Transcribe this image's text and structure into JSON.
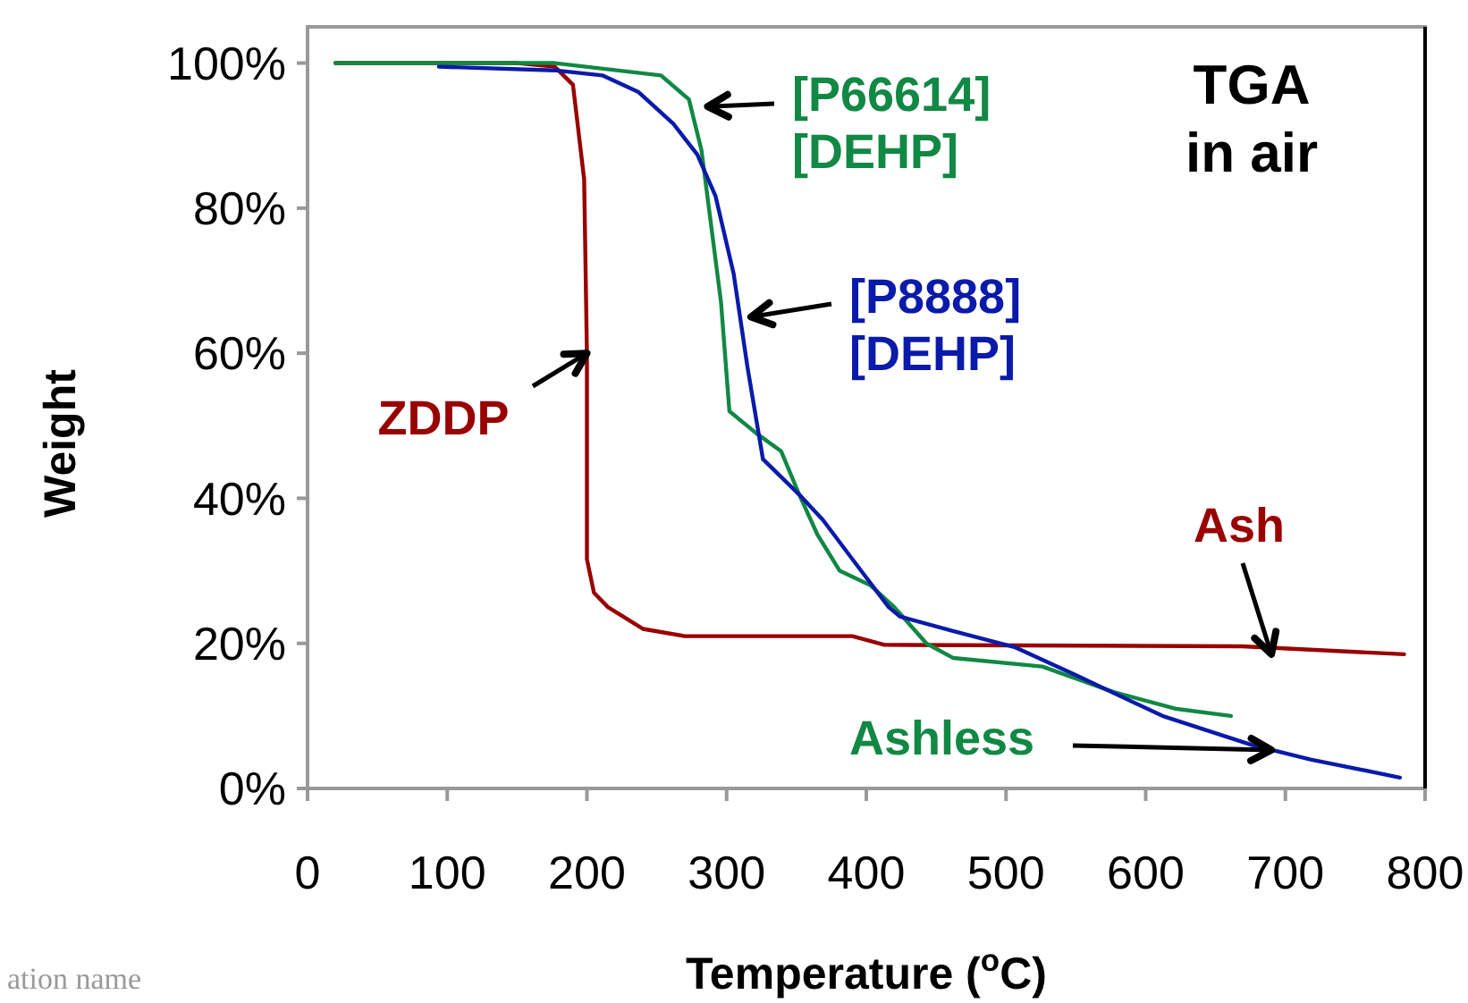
{
  "chart_data": {
    "type": "line",
    "title": "TGA in air",
    "xlabel": "Temperature ($^{o}$C)",
    "ylabel": "Weight",
    "xlim": [
      0,
      800
    ],
    "xticks": [
      0,
      100,
      200,
      300,
      400,
      500,
      600,
      700,
      800
    ],
    "ylim": [
      0,
      105
    ],
    "yticks": [
      {
        "value": 0,
        "label": "0%"
      },
      {
        "value": 20,
        "label": "20%"
      },
      {
        "value": 40,
        "label": "40%"
      },
      {
        "value": 60,
        "label": "60%"
      },
      {
        "value": 80,
        "label": "80%"
      },
      {
        "value": 100,
        "label": "100%"
      }
    ],
    "grid": false,
    "legend": false,
    "marker": "none",
    "line_style": "solid",
    "series": [
      {
        "name": "ZDDP",
        "color": "#990000",
        "x": [
          20,
          150,
          177,
          190,
          198,
          200,
          200,
          205,
          215,
          240,
          270,
          390,
          413,
          669,
          785
        ],
        "values": [
          100,
          100,
          99.5,
          97,
          84,
          60,
          31.6,
          27,
          25,
          22,
          21,
          21,
          19.8,
          19.6,
          18.5
        ]
      },
      {
        "name": "[P66614]\n[DEHP]",
        "color": "#118844",
        "x": [
          20,
          177,
          253,
          273,
          282,
          288,
          296,
          302,
          321,
          339,
          352,
          365,
          381,
          403,
          420,
          443,
          462,
          526,
          577,
          621,
          661
        ],
        "values": [
          100,
          100,
          98.3,
          95,
          88,
          79,
          67,
          52,
          49,
          46.5,
          40.5,
          35,
          30,
          28,
          25,
          20,
          18,
          16.8,
          13.3,
          11,
          10
        ]
      },
      {
        "name": "[P8888]\n[DEHP]",
        "color": "#0a1aaa",
        "x": [
          94,
          177,
          211,
          237,
          262,
          279,
          292,
          305,
          315,
          326,
          352,
          369,
          394,
          416,
          424,
          462,
          506,
          548,
          612,
          676,
          718,
          782
        ],
        "values": [
          99.5,
          99,
          98.3,
          96,
          91.6,
          87.4,
          81.7,
          71,
          58,
          45.4,
          40.5,
          37,
          30.6,
          25,
          23.7,
          21.7,
          19.5,
          15.8,
          10,
          6,
          4,
          1.5
        ]
      }
    ],
    "annotations": [
      {
        "text": "Ash",
        "x": 690,
        "y": 18.5
      },
      {
        "text": "Ashless",
        "x": 690,
        "y": 5.3
      },
      "ation name"
    ]
  }
}
